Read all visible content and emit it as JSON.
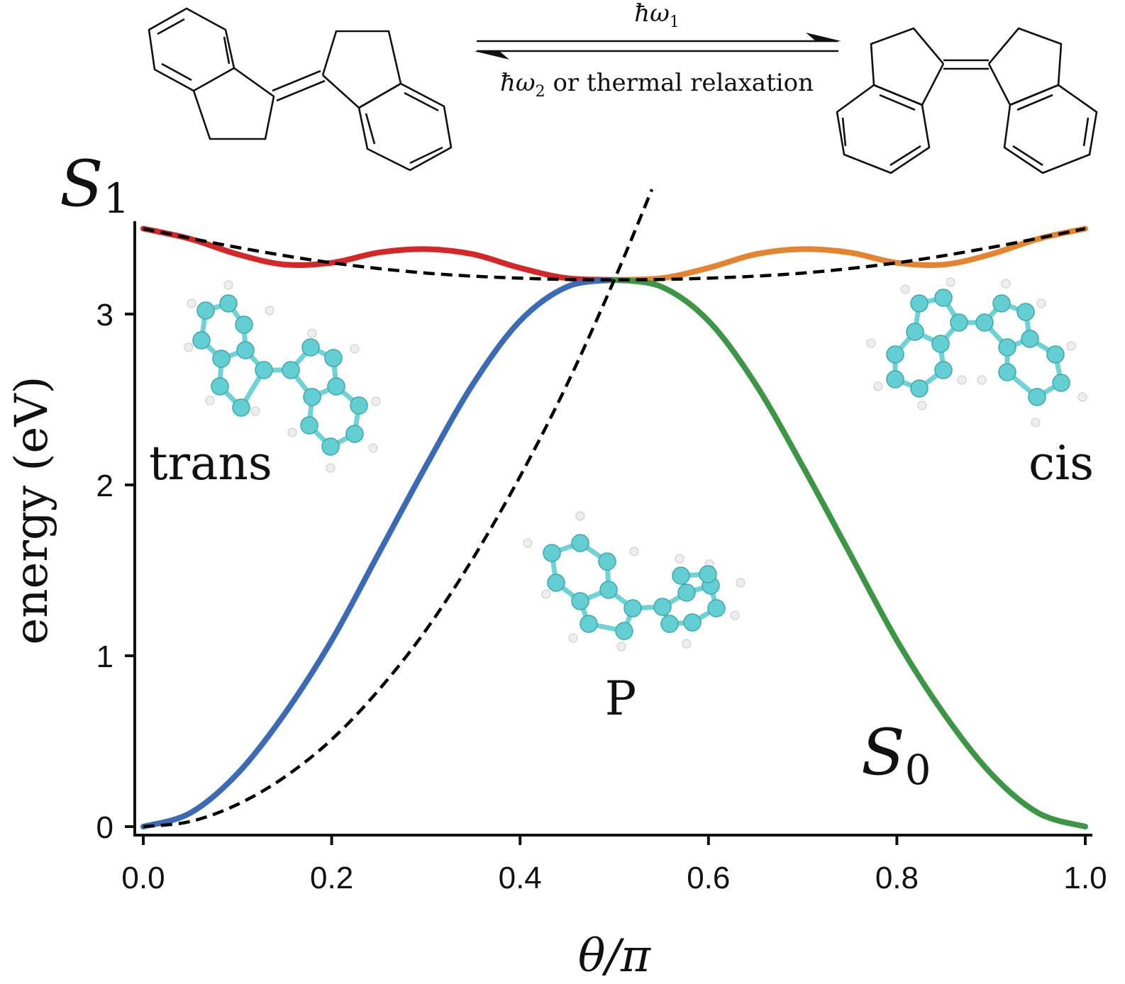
{
  "chart_data": {
    "type": "line",
    "title": "",
    "xlabel": "θ/π",
    "ylabel": "energy (eV)",
    "xlim": [
      0.0,
      1.0
    ],
    "ylim": [
      0.0,
      3.5
    ],
    "xticks": [
      "0.0",
      "0.2",
      "0.4",
      "0.6",
      "0.8",
      "1.0"
    ],
    "yticks": [
      "0",
      "1",
      "2",
      "3"
    ],
    "grid": false,
    "legend": "none",
    "state_labels": {
      "s1": "S",
      "s1_sub": "1",
      "s0": "S",
      "s0_sub": "0"
    },
    "annotations": {
      "trans": "trans",
      "cis": "cis",
      "p": "P"
    },
    "scheme": {
      "forward": "ħω",
      "forward_sub": "1",
      "backward_pre": "ħω",
      "backward_sub": "2",
      "backward_post": " or thermal relaxation"
    },
    "series": [
      {
        "color": "#d62728",
        "style": "solid",
        "x": [
          0.0,
          0.05,
          0.1,
          0.15,
          0.2,
          0.25,
          0.3,
          0.35,
          0.4,
          0.45,
          0.5
        ],
        "y": [
          3.5,
          3.44,
          3.35,
          3.29,
          3.3,
          3.36,
          3.38,
          3.35,
          3.27,
          3.21,
          3.2
        ]
      },
      {
        "color": "#e6832f",
        "style": "solid",
        "x": [
          0.5,
          0.55,
          0.6,
          0.65,
          0.7,
          0.75,
          0.8,
          0.85,
          0.9,
          0.95,
          1.0
        ],
        "y": [
          3.2,
          3.21,
          3.27,
          3.35,
          3.38,
          3.36,
          3.3,
          3.29,
          3.35,
          3.44,
          3.5
        ]
      },
      {
        "color": "#3b6bb5",
        "style": "solid",
        "x": [
          0.0,
          0.05,
          0.1,
          0.15,
          0.2,
          0.25,
          0.3,
          0.35,
          0.4,
          0.45,
          0.5
        ],
        "y": [
          0.0,
          0.08,
          0.31,
          0.66,
          1.09,
          1.6,
          2.11,
          2.59,
          2.96,
          3.16,
          3.2
        ]
      },
      {
        "color": "#3c9645",
        "style": "solid",
        "x": [
          0.5,
          0.55,
          0.6,
          0.65,
          0.7,
          0.75,
          0.8,
          0.85,
          0.9,
          0.95,
          1.0
        ],
        "y": [
          3.2,
          3.16,
          2.96,
          2.59,
          2.11,
          1.6,
          1.09,
          0.66,
          0.31,
          0.08,
          0.0
        ]
      },
      {
        "color": "#000000",
        "style": "dashed",
        "x": [
          0.0,
          0.1,
          0.2,
          0.3,
          0.4,
          0.5,
          0.6,
          0.7,
          0.8,
          0.9,
          1.0
        ],
        "y": [
          3.5,
          3.39,
          3.3,
          3.24,
          3.21,
          3.2,
          3.21,
          3.24,
          3.3,
          3.39,
          3.5
        ]
      },
      {
        "color": "#000000",
        "style": "dashed",
        "x": [
          0.0,
          0.05,
          0.1,
          0.15,
          0.2,
          0.25,
          0.3,
          0.35,
          0.4,
          0.45,
          0.5,
          0.54
        ],
        "y": [
          0.0,
          0.03,
          0.13,
          0.29,
          0.51,
          0.8,
          1.15,
          1.57,
          2.05,
          2.59,
          3.2,
          3.73
        ]
      }
    ]
  }
}
